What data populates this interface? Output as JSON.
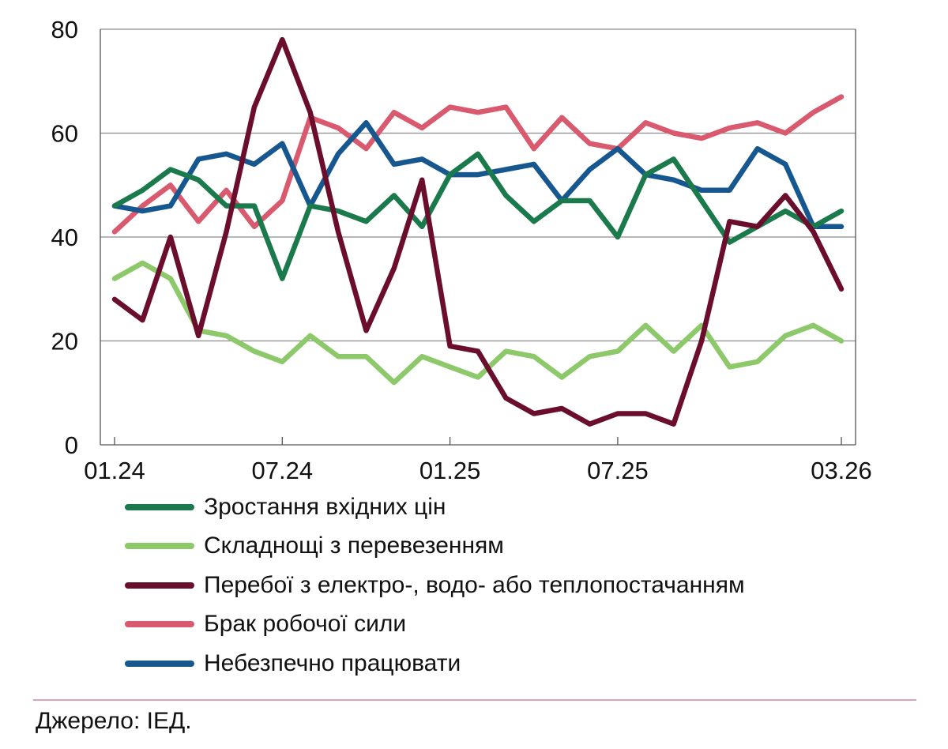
{
  "chart_data": {
    "type": "line",
    "x": [
      "01.24",
      "02.24",
      "03.24",
      "04.24",
      "05.24",
      "06.24",
      "07.24",
      "08.24",
      "09.24",
      "10.24",
      "11.24",
      "12.24",
      "01.25",
      "02.25",
      "03.25",
      "04.25",
      "05.25",
      "06.25",
      "07.25",
      "08.25",
      "09.25",
      "10.25",
      "11.25",
      "12.25",
      "01.26",
      "02.26",
      "03.26"
    ],
    "x_ticks": [
      "01.24",
      "07.24",
      "01.25",
      "07.25",
      "03.26"
    ],
    "x_tick_indices": [
      0,
      6,
      12,
      18,
      26
    ],
    "ylim": [
      0,
      80
    ],
    "y_ticks": [
      0,
      20,
      40,
      60,
      80
    ],
    "y_tick_labels": [
      "0",
      "20",
      "40",
      "60",
      "80"
    ],
    "grid": "horizontal",
    "legend_position": "bottom",
    "series": [
      {
        "name": "Брак робочої сили",
        "color": "#d9596e",
        "values": [
          41,
          46,
          50,
          43,
          49,
          42,
          47,
          63,
          61,
          57,
          64,
          61,
          65,
          64,
          65,
          57,
          63,
          58,
          57,
          62,
          60,
          59,
          61,
          62,
          60,
          64,
          67
        ]
      },
      {
        "name": "Складнощі з перевезенням",
        "color": "#8dc86a",
        "values": [
          32,
          35,
          32,
          22,
          21,
          18,
          16,
          21,
          17,
          17,
          12,
          17,
          15,
          13,
          18,
          17,
          13,
          17,
          18,
          23,
          18,
          23,
          15,
          16,
          21,
          23,
          20
        ]
      },
      {
        "name": "Небезпечно працювати",
        "color": "#16578f",
        "values": [
          46,
          45,
          46,
          55,
          56,
          54,
          58,
          46,
          56,
          62,
          54,
          55,
          52,
          52,
          53,
          54,
          47,
          53,
          57,
          52,
          51,
          49,
          49,
          57,
          54,
          42,
          42
        ]
      },
      {
        "name": "Зростання вхідних цін",
        "color": "#1a7a4c",
        "values": [
          46,
          49,
          53,
          51,
          46,
          46,
          32,
          46,
          45,
          43,
          48,
          42,
          52,
          56,
          48,
          43,
          47,
          47,
          40,
          52,
          55,
          47,
          39,
          42,
          45,
          42,
          45
        ]
      },
      {
        "name": "Перебої з електро-, водо- або теплопостачанням",
        "color": "#6b0d2c",
        "values": [
          28,
          24,
          40,
          21,
          41,
          65,
          78,
          64,
          41,
          22,
          34,
          51,
          19,
          18,
          9,
          6,
          7,
          4,
          6,
          6,
          4,
          20,
          43,
          42,
          48,
          41,
          30
        ]
      }
    ],
    "legend_order": [
      3,
      1,
      4,
      0,
      2
    ]
  },
  "source": "Джерело: ІЕД."
}
